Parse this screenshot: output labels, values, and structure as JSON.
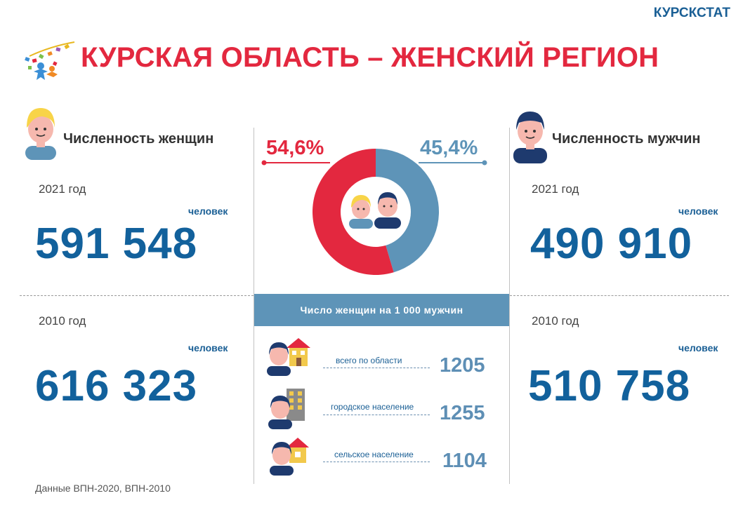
{
  "brand": "КУРСКСТАТ",
  "title": "КУРСКАЯ ОБЛАСТЬ – ЖЕНСКИЙ РЕГИОН",
  "women": {
    "heading": "Численность женщин",
    "y2021": {
      "year": "2021 год",
      "unit": "человек",
      "value": "591 548"
    },
    "y2010": {
      "year": "2010 год",
      "unit": "человек",
      "value": "616 323"
    }
  },
  "men": {
    "heading": "Численность мужчин",
    "y2021": {
      "year": "2021 год",
      "unit": "человек",
      "value": "490 910"
    },
    "y2010": {
      "year": "2010 год",
      "unit": "человек",
      "value": "510 758"
    }
  },
  "ratio": {
    "title": "Число женщин на 1 000 мужчин",
    "rows": [
      {
        "label": "всего по области",
        "value": "1205"
      },
      {
        "label": "городское население",
        "value": "1255"
      },
      {
        "label": "сельское население",
        "value": "1104"
      }
    ]
  },
  "footnote": "Данные ВПН-2020, ВПН-2010",
  "colors": {
    "women": "#e3283f",
    "men": "#5e94b8",
    "numbers": "#12619c",
    "title": "#e3283f"
  },
  "chart_data": {
    "type": "pie",
    "donut": true,
    "categories": [
      "Женщины",
      "Мужчины"
    ],
    "values": [
      54.6,
      45.4
    ],
    "labels": [
      "54,6%",
      "45,4%"
    ],
    "colors": [
      "#e3283f",
      "#5e94b8"
    ]
  }
}
